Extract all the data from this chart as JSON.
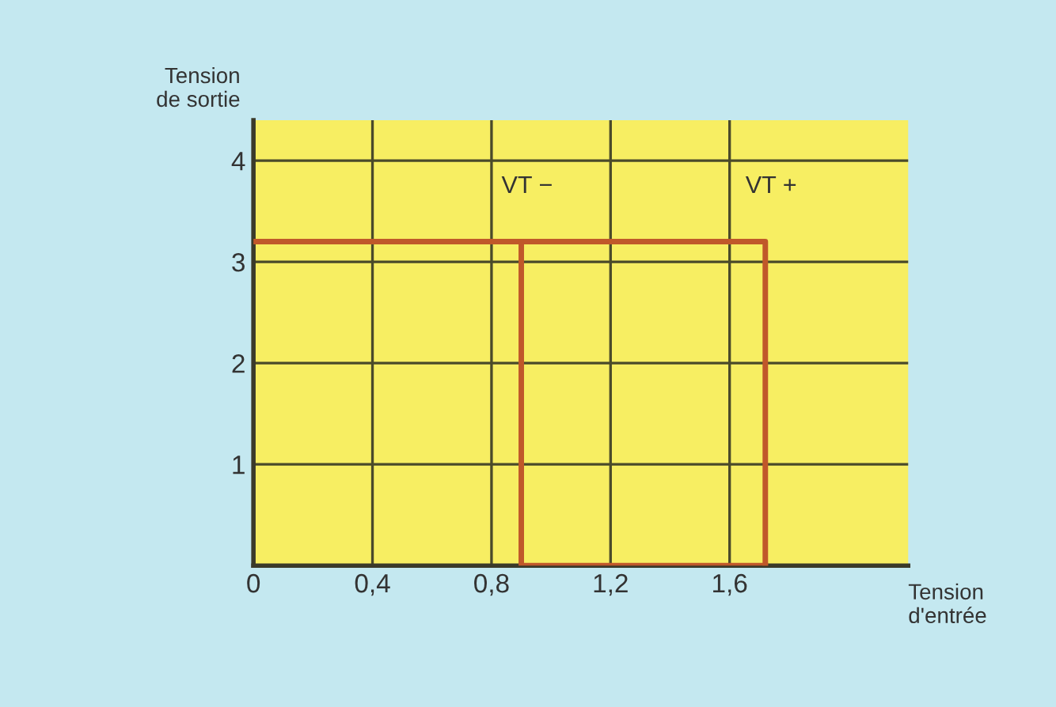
{
  "chart_data": {
    "type": "line",
    "xlabel": "Tension\nd'entrée",
    "ylabel": "Tension\nde sortie",
    "series": [
      {
        "x": [
          0,
          1.72,
          1.72
        ],
        "values": [
          3.2,
          3.2,
          0
        ],
        "color": "#c0582a"
      },
      {
        "x": [
          0.9,
          0.9,
          1.72
        ],
        "values": [
          3.2,
          0,
          0
        ],
        "color": "#c0582a"
      }
    ],
    "annotations": [
      {
        "text": "VT −",
        "x": 0.9,
        "y": 3.2
      },
      {
        "text": "VT +",
        "x": 1.72,
        "y": 3.2
      }
    ],
    "xlim": [
      0,
      2.2
    ],
    "ylim": [
      0,
      4.4
    ],
    "xticks": [
      0,
      {
        "value": 0.4,
        "label": "0,4"
      },
      {
        "value": 0.8,
        "label": "0,8"
      },
      {
        "value": 1.2,
        "label": "1,2"
      },
      {
        "value": 1.6,
        "label": "1,6"
      }
    ],
    "yticks": [
      1,
      2,
      3,
      4
    ],
    "grid": true,
    "marker": "none",
    "line_style": "solid"
  }
}
